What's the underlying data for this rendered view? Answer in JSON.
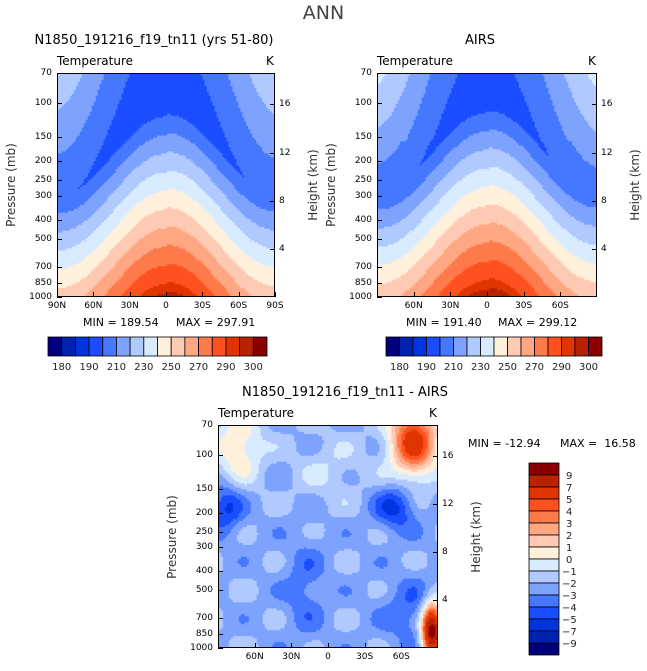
{
  "title": "ANN",
  "chart_data": [
    {
      "type": "heatmap",
      "title": "N1850_191216_f19_tn11 (yrs 51-80)",
      "variable": "Temperature",
      "units": "K",
      "ylabel": "Pressure (mb)",
      "ylabel_right": "Height (km)",
      "x_ticks": [
        "90N",
        "60N",
        "30N",
        "0",
        "30S",
        "60S",
        "90S"
      ],
      "y_ticks": [
        "70",
        "100",
        "150",
        "200",
        "250",
        "300",
        "400",
        "500",
        "700",
        "850",
        "1000"
      ],
      "y_ticks_right": [
        "16",
        "12",
        "8",
        "4"
      ],
      "min_label": "MIN = 189.54",
      "max_label": "MAX = 297.91",
      "min": 189.54,
      "max": 297.91,
      "levels": [
        180,
        185,
        190,
        200,
        210,
        220,
        230,
        240,
        250,
        260,
        270,
        280,
        290,
        295,
        300
      ],
      "colorbar_labels": [
        "180",
        "190",
        "210",
        "230",
        "250",
        "270",
        "290",
        "300"
      ]
    },
    {
      "type": "heatmap",
      "title": "AIRS",
      "variable": "Temperature",
      "units": "K",
      "ylabel": "Pressure (mb)",
      "ylabel_right": "Height (km)",
      "x_ticks": [
        "60N",
        "30N",
        "0",
        "30S",
        "60S"
      ],
      "y_ticks": [
        "70",
        "100",
        "150",
        "200",
        "250",
        "300",
        "400",
        "500",
        "700",
        "850",
        "1000"
      ],
      "y_ticks_right": [
        "16",
        "12",
        "8",
        "4"
      ],
      "min_label": "MIN = 191.40",
      "max_label": "MAX = 299.12",
      "min": 191.4,
      "max": 299.12,
      "levels": [
        180,
        185,
        190,
        200,
        210,
        220,
        230,
        240,
        250,
        260,
        270,
        280,
        290,
        295,
        300
      ],
      "colorbar_labels": [
        "180",
        "190",
        "210",
        "230",
        "250",
        "270",
        "290",
        "300"
      ]
    },
    {
      "type": "heatmap",
      "title": "N1850_191216_f19_tn11 - AIRS",
      "variable": "Temperature",
      "units": "K",
      "ylabel": "Pressure (mb)",
      "ylabel_right": "Height (km)",
      "x_ticks": [
        "60N",
        "30N",
        "0",
        "30S",
        "60S"
      ],
      "y_ticks": [
        "70",
        "100",
        "150",
        "200",
        "250",
        "300",
        "400",
        "500",
        "700",
        "850",
        "1000"
      ],
      "y_ticks_right": [
        "16",
        "12",
        "8",
        "4"
      ],
      "min_label": "MIN = -12.94",
      "max_label": "MAX =  16.58",
      "min": -12.94,
      "max": 16.58,
      "levels": [
        -9,
        -7,
        -5,
        -4,
        -3,
        -2,
        -1,
        0,
        1,
        2,
        3,
        4,
        5,
        7,
        9
      ],
      "colorbar_labels": [
        "9",
        "7",
        "5",
        "4",
        "3",
        "2",
        "1",
        "0",
        "-1",
        "-2",
        "-3",
        "-4",
        "-5",
        "-7",
        "-9"
      ]
    }
  ],
  "colors": [
    "#00007f",
    "#0022b0",
    "#0035dd",
    "#1a4dff",
    "#4577ff",
    "#7ea3ff",
    "#b0c9ff",
    "#d9ebff",
    "#fff0dc",
    "#ffcab3",
    "#ffa683",
    "#ff7a4a",
    "#ff5020",
    "#e03500",
    "#b92200",
    "#8a0000"
  ]
}
